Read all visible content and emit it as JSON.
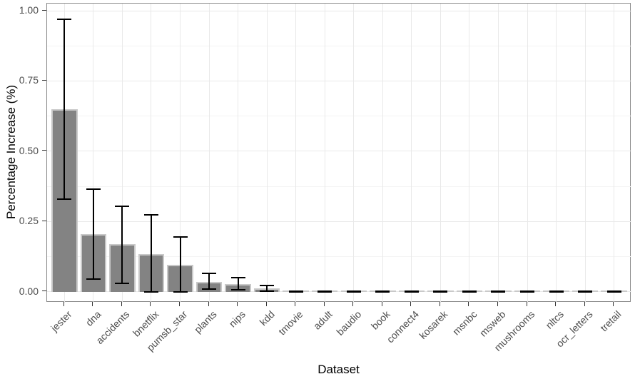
{
  "chart_data": {
    "type": "bar",
    "title": "",
    "xlabel": "Dataset",
    "ylabel": "Percentage Increase (%)",
    "categories": [
      "jester",
      "dna",
      "accidents",
      "bnetflix",
      "pumsb_star",
      "plants",
      "nips",
      "kdd",
      "tmovie",
      "adult",
      "baudio",
      "book",
      "connect4",
      "kosarek",
      "msnbc",
      "msweb",
      "mushrooms",
      "nltcs",
      "ocr_letters",
      "tretail"
    ],
    "values": [
      0.65,
      0.205,
      0.17,
      0.135,
      0.095,
      0.035,
      0.028,
      0.013,
      0.001,
      0.001,
      0.001,
      0.001,
      0.001,
      0.001,
      0.001,
      0.001,
      0.001,
      0.001,
      0.001,
      0.001
    ],
    "error_low": [
      0.33,
      0.045,
      0.03,
      0.0,
      0.0,
      0.01,
      0.008,
      0.002,
      0.0,
      0.0,
      0.0,
      0.0,
      0.0,
      0.0,
      0.0,
      0.0,
      0.0,
      0.0,
      0.0,
      0.0
    ],
    "error_high": [
      0.97,
      0.365,
      0.305,
      0.275,
      0.195,
      0.065,
      0.05,
      0.022,
      0.003,
      0.003,
      0.003,
      0.003,
      0.003,
      0.003,
      0.003,
      0.003,
      0.003,
      0.003,
      0.003,
      0.003
    ],
    "yticks": [
      0,
      0.25,
      0.5,
      0.75,
      1.0
    ],
    "ytick_labels": [
      "0.00",
      "0.25",
      "0.50",
      "0.75",
      "1.00"
    ],
    "minor_yticks": [
      0.125,
      0.375,
      0.625,
      0.875
    ],
    "ylim": [
      -0.0385,
      1.0255
    ],
    "grid": true,
    "legend_position": "none",
    "colors": {
      "bar_fill": "#838383",
      "bar_stroke": "#c9c9c9",
      "error_bar": "#000000",
      "grid_major": "#e9e9e9",
      "grid_minor": "#f4f4f4",
      "panel_border": "#898989",
      "axis_text": "#4d4d4d",
      "tick_mark": "#333333",
      "title_text": "#000000"
    }
  }
}
